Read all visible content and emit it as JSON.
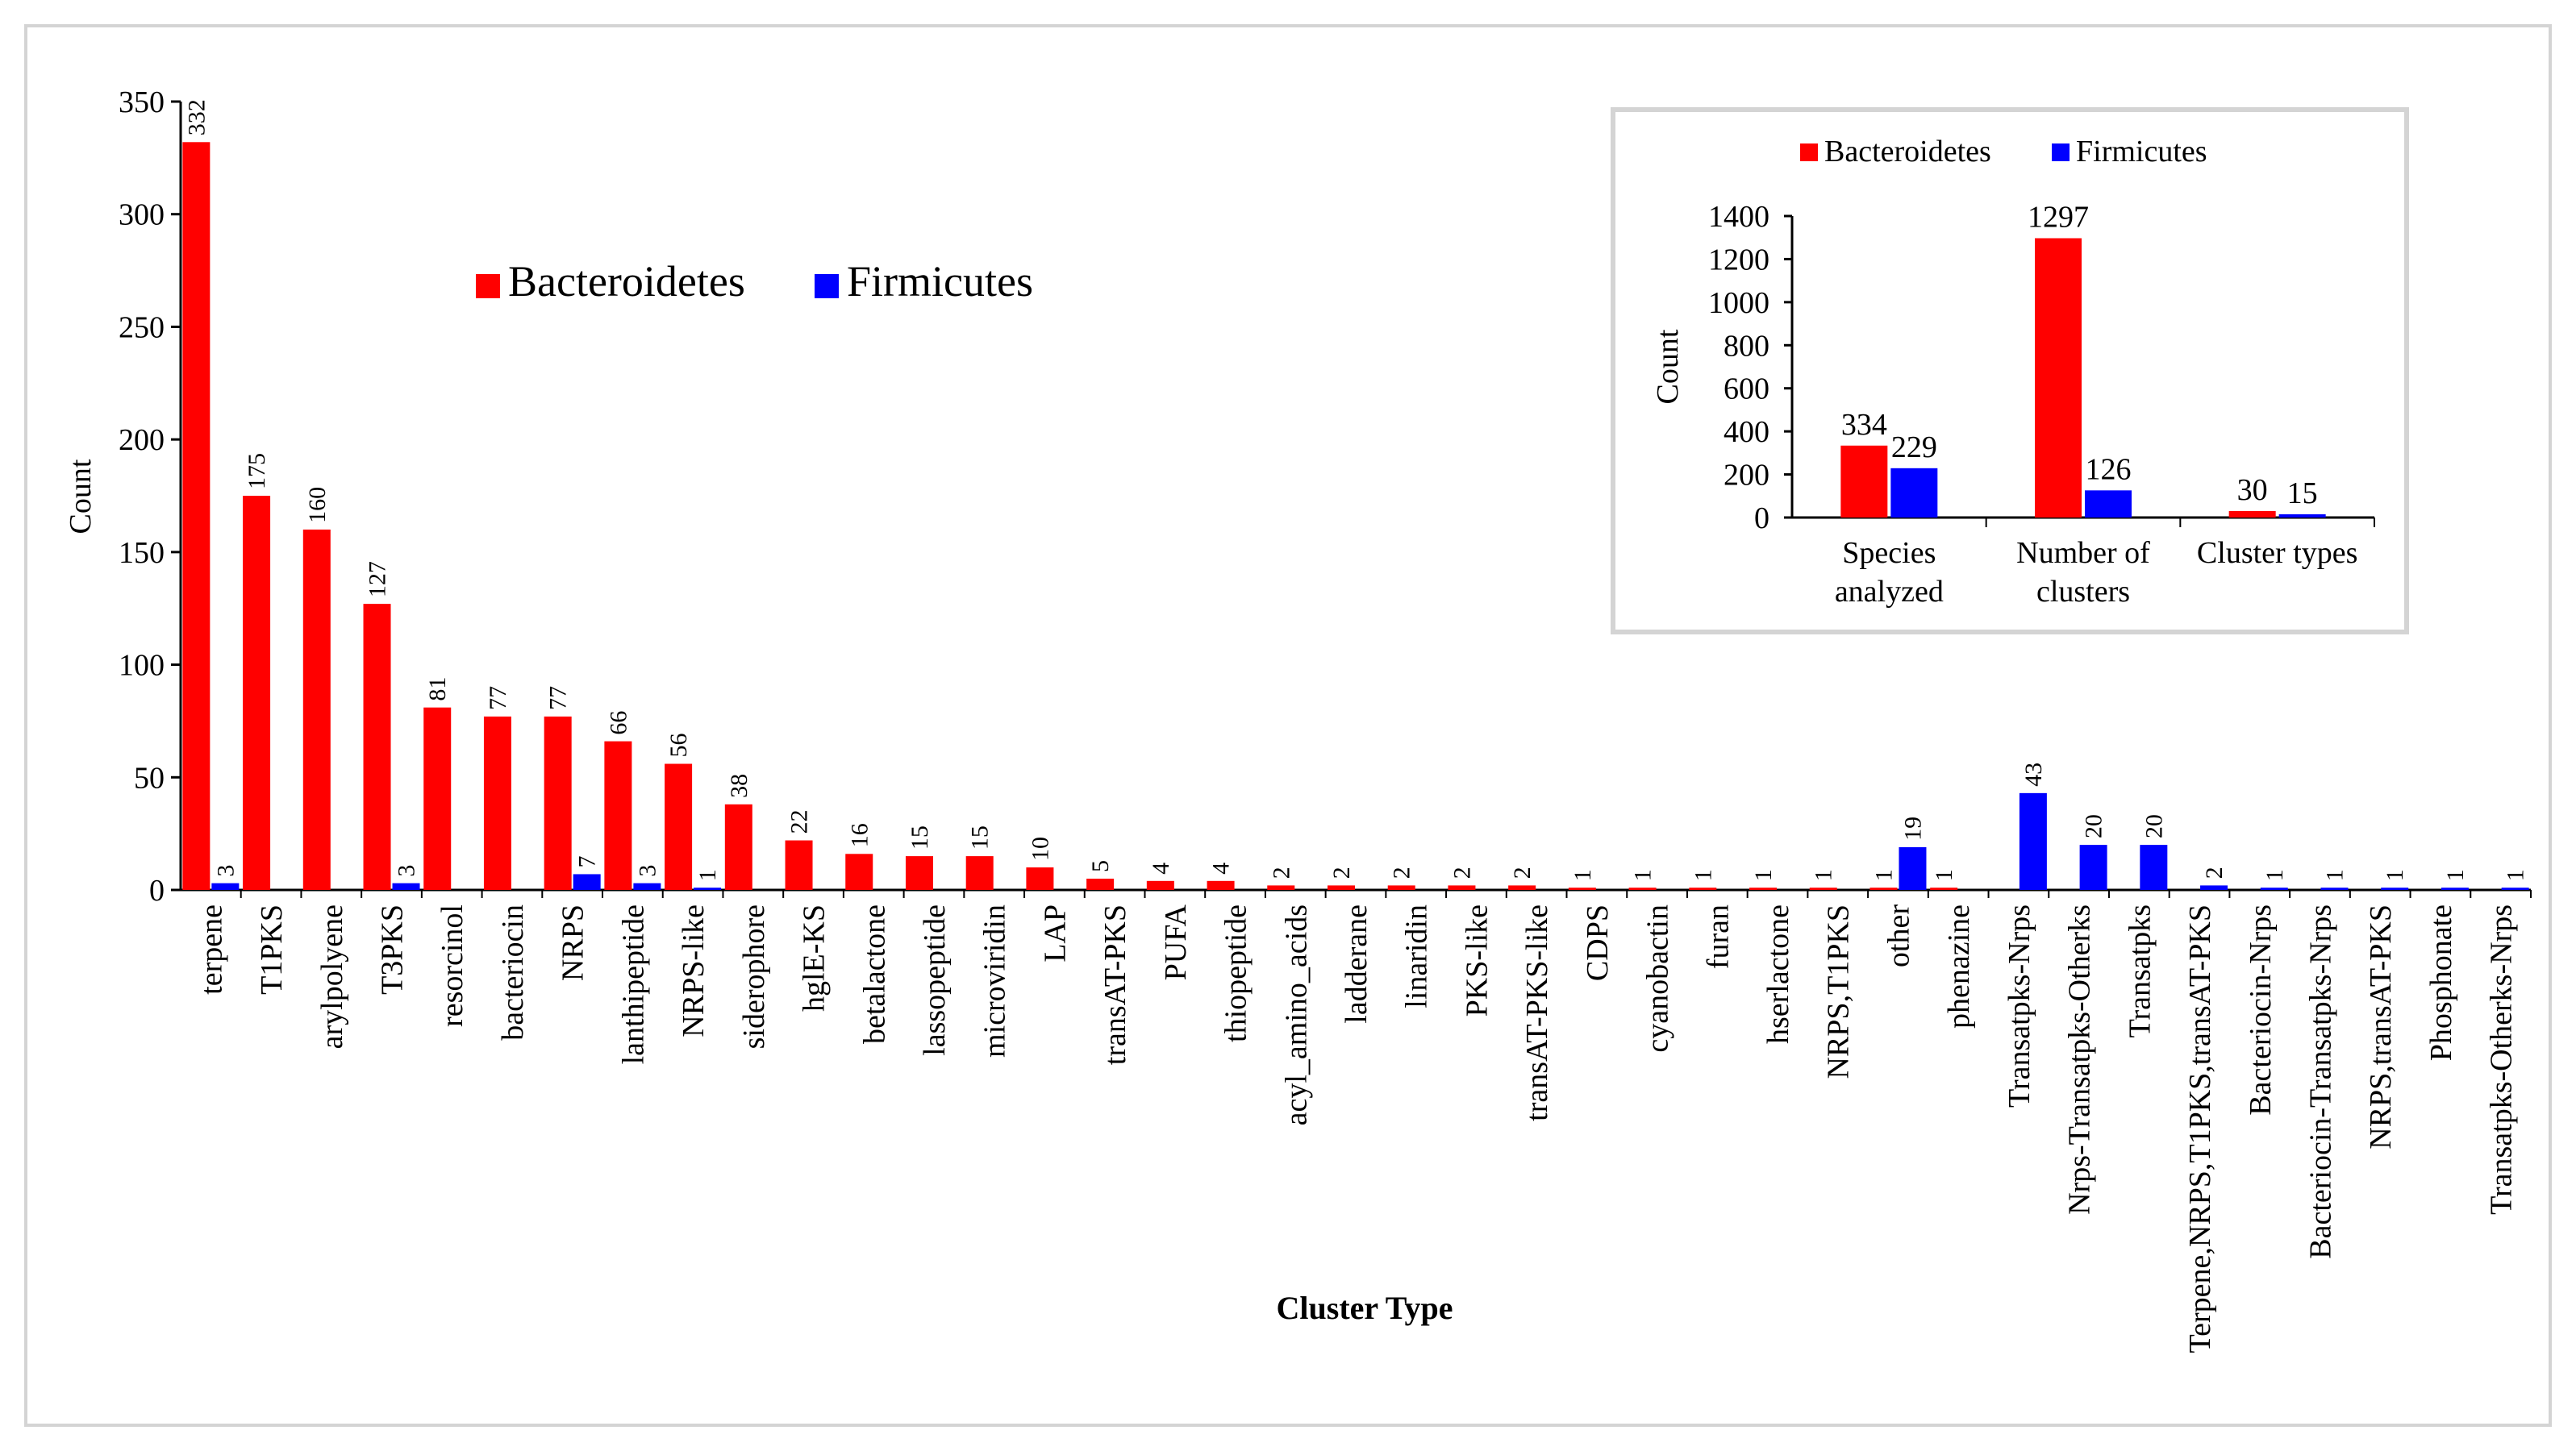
{
  "colors": {
    "bacteroidetes": "#ff0000",
    "firmicutes": "#0000ff",
    "axis": "#000000",
    "frame": "#d4d4d4"
  },
  "chart_data": [
    {
      "type": "bar",
      "title": "",
      "xlabel": "Cluster Type",
      "ylabel": "Count",
      "ylim": [
        0,
        350
      ],
      "yticks": [
        0,
        50,
        100,
        150,
        200,
        250,
        300,
        350
      ],
      "legend": {
        "placement": "upper-middle",
        "entries": [
          "Bacteroidetes",
          "Firmicutes"
        ]
      },
      "categories": [
        "terpene",
        "T1PKS",
        "arylpolyene",
        "T3PKS",
        "resorcinol",
        "bacteriocin",
        "NRPS",
        "lanthipeptide",
        "NRPS-like",
        "siderophore",
        "hglE-KS",
        "betalactone",
        "lassopeptide",
        "microviridin",
        "LAP",
        "transAT-PKS",
        "PUFA",
        "thiopeptide",
        "acyl_amino_acids",
        "ladderane",
        "linaridin",
        "PKS-like",
        "transAT-PKS-like",
        "CDPS",
        "cyanobactin",
        "furan",
        "hserlactone",
        "NRPS,T1PKS",
        "other",
        "phenazine",
        "Transatpks-Nrps",
        "Nrps-Transatpks-Otherks",
        "Transatpks",
        "Terpene,NRPS,T1PKS,transAT-PKS",
        "Bacteriocin-Nrps",
        "Bacteriocin-Transatpks-Nrps",
        "NRPS,transAT-PKS",
        "Phosphonate",
        "Transatpks-Otherks-Nrps"
      ],
      "series": [
        {
          "name": "Bacteroidetes",
          "values": [
            332,
            175,
            160,
            127,
            81,
            77,
            77,
            66,
            56,
            38,
            22,
            16,
            15,
            15,
            10,
            5,
            4,
            4,
            2,
            2,
            2,
            2,
            2,
            1,
            1,
            1,
            1,
            1,
            1,
            1,
            null,
            null,
            null,
            null,
            null,
            null,
            null,
            null,
            null
          ]
        },
        {
          "name": "Firmicutes",
          "values": [
            3,
            null,
            null,
            3,
            null,
            null,
            7,
            3,
            1,
            null,
            null,
            null,
            null,
            null,
            null,
            null,
            null,
            null,
            null,
            null,
            null,
            null,
            null,
            null,
            null,
            null,
            null,
            null,
            19,
            null,
            43,
            20,
            20,
            2,
            1,
            1,
            1,
            1,
            1
          ]
        }
      ]
    },
    {
      "type": "bar",
      "title": "",
      "xlabel": "",
      "ylabel": "Count",
      "ylim": [
        0,
        1400
      ],
      "yticks": [
        0,
        200,
        400,
        600,
        800,
        1000,
        1200,
        1400
      ],
      "legend": {
        "placement": "top",
        "entries": [
          "Bacteroidetes",
          "Firmicutes"
        ]
      },
      "categories": [
        [
          "Species",
          "analyzed"
        ],
        [
          "Number of",
          "clusters"
        ],
        [
          "Cluster types"
        ]
      ],
      "series": [
        {
          "name": "Bacteroidetes",
          "values": [
            334,
            1297,
            30
          ]
        },
        {
          "name": "Firmicutes",
          "values": [
            229,
            126,
            15
          ]
        }
      ]
    }
  ]
}
